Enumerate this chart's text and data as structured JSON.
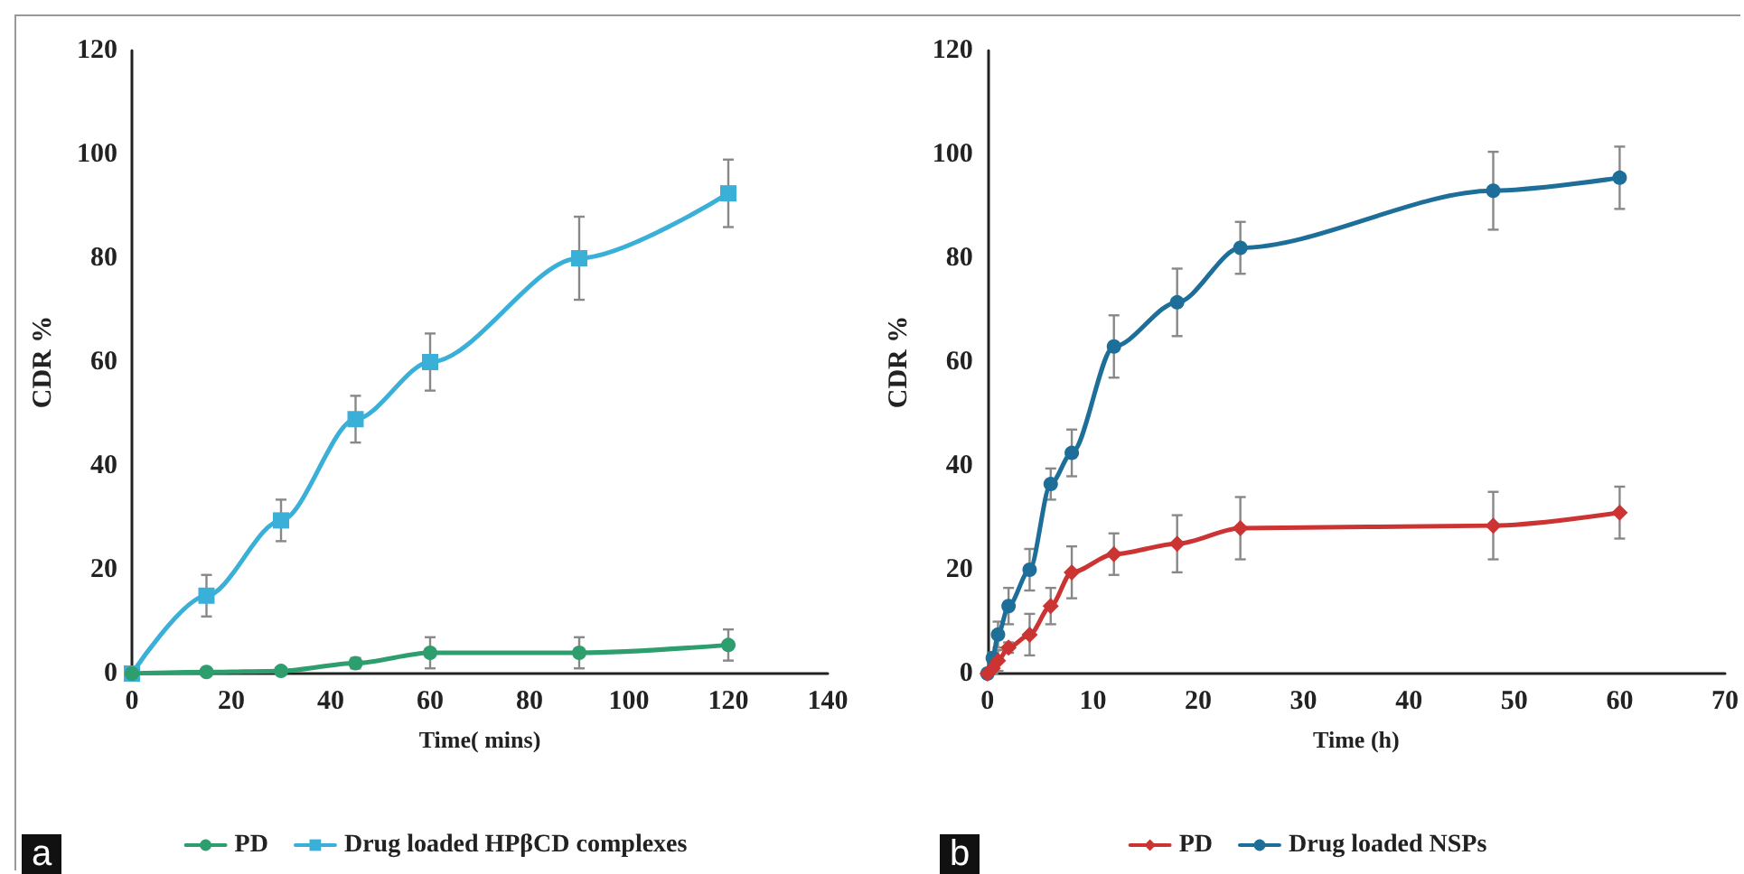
{
  "chart_data": [
    {
      "type": "line",
      "xlabel": "Time( mins)",
      "ylabel": "CDR %",
      "xlim": [
        0,
        140
      ],
      "xticks": [
        0,
        20,
        40,
        60,
        80,
        100,
        120,
        140
      ],
      "ylim": [
        0,
        120
      ],
      "yticks": [
        0,
        20,
        40,
        60,
        80,
        100,
        120
      ],
      "grid": false,
      "legend": "bottom",
      "annotations": [
        "a"
      ],
      "x": [
        0,
        15,
        30,
        45,
        60,
        90,
        120
      ],
      "series": [
        {
          "name": "PD",
          "color": "#2e9e6e",
          "marker": "circle",
          "values": [
            0,
            0.3,
            0.5,
            2,
            4,
            4,
            5.5
          ],
          "errors": [
            null,
            0.5,
            0.5,
            1,
            3,
            3,
            3
          ]
        },
        {
          "name": "Drug loaded HPβCD complexes",
          "color": "#3ab0d8",
          "marker": "square",
          "values": [
            0,
            15,
            29.5,
            49,
            60,
            80,
            92.5
          ],
          "errors": [
            null,
            4,
            4,
            4.5,
            5.5,
            8,
            6.5
          ]
        }
      ]
    },
    {
      "type": "line",
      "xlabel": "Time (h)",
      "ylabel": "CDR %",
      "xlim": [
        0,
        70
      ],
      "xticks": [
        0,
        10,
        20,
        30,
        40,
        50,
        60,
        70
      ],
      "ylim": [
        0,
        120
      ],
      "yticks": [
        0,
        20,
        40,
        60,
        80,
        100,
        120
      ],
      "grid": false,
      "legend": "bottom",
      "annotations": [
        "b"
      ],
      "x": [
        0,
        0.5,
        1,
        2,
        4,
        6,
        8,
        12,
        18,
        24,
        48,
        60
      ],
      "series": [
        {
          "name": "PD",
          "color": "#cc3333",
          "marker": "diamond",
          "values": [
            0,
            1,
            2.5,
            5,
            7.5,
            13,
            19.5,
            23,
            25,
            28,
            28.5,
            31
          ],
          "errors": [
            null,
            1,
            2,
            1,
            4,
            3.5,
            5,
            4,
            5.5,
            6,
            6.5,
            5
          ]
        },
        {
          "name": "Drug loaded NSPs",
          "color": "#1e6e9a",
          "marker": "circle",
          "values": [
            0,
            3,
            7.5,
            13,
            20,
            36.5,
            42.5,
            63,
            71.5,
            82,
            93,
            95.5
          ],
          "errors": [
            null,
            1,
            2.5,
            3.5,
            4,
            3,
            4.5,
            6,
            6.5,
            5,
            7.5,
            6
          ]
        }
      ]
    }
  ]
}
